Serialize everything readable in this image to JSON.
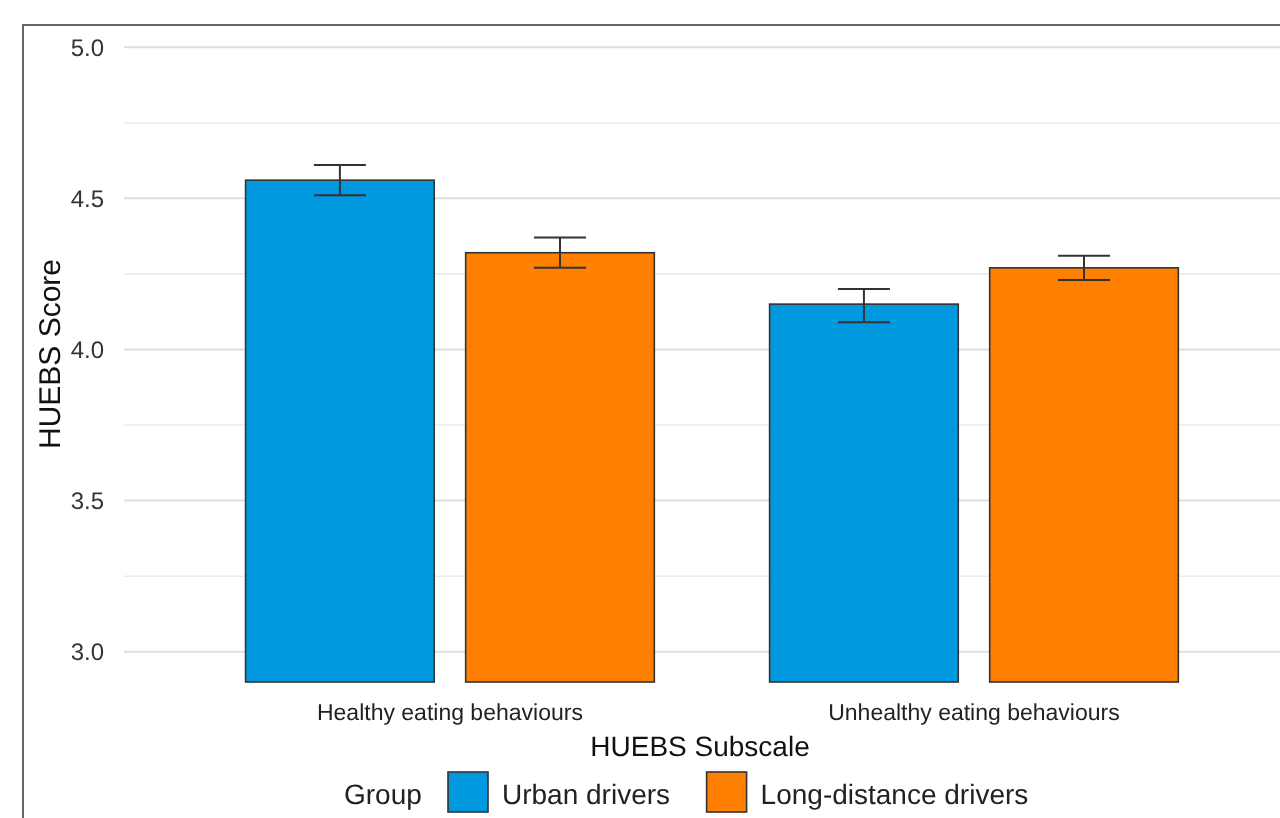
{
  "chart_data": {
    "type": "bar",
    "xlabel": "HUEBS Subscale",
    "ylabel": "HUEBS Score",
    "legend_title": "Group",
    "legend": "bottom",
    "grid": "y",
    "categories": [
      "Healthy eating behaviours",
      "Unhealthy eating behaviours"
    ],
    "series": [
      {
        "name": "Urban drivers",
        "color": "#0099e0",
        "values": [
          4.56,
          4.15
        ],
        "errors": [
          [
            4.51,
            4.61
          ],
          [
            4.09,
            4.2
          ]
        ]
      },
      {
        "name": "Long-distance drivers",
        "color": "#ff8000",
        "values": [
          4.32,
          4.27
        ],
        "errors": [
          [
            4.27,
            4.37
          ],
          [
            4.23,
            4.31
          ]
        ]
      }
    ],
    "ylim": [
      2.9,
      5.07
    ],
    "yticks": [
      {
        "value": 3,
        "label": "3.0"
      },
      {
        "value": 3.25,
        "label": null
      },
      3.5,
      {
        "value": 3.75,
        "label": null
      },
      {
        "value": 4,
        "label": "4.0"
      },
      {
        "value": 4.25,
        "label": null
      },
      4.5,
      {
        "value": 4.75,
        "label": null
      },
      {
        "value": 5,
        "label": "5.0"
      }
    ]
  }
}
